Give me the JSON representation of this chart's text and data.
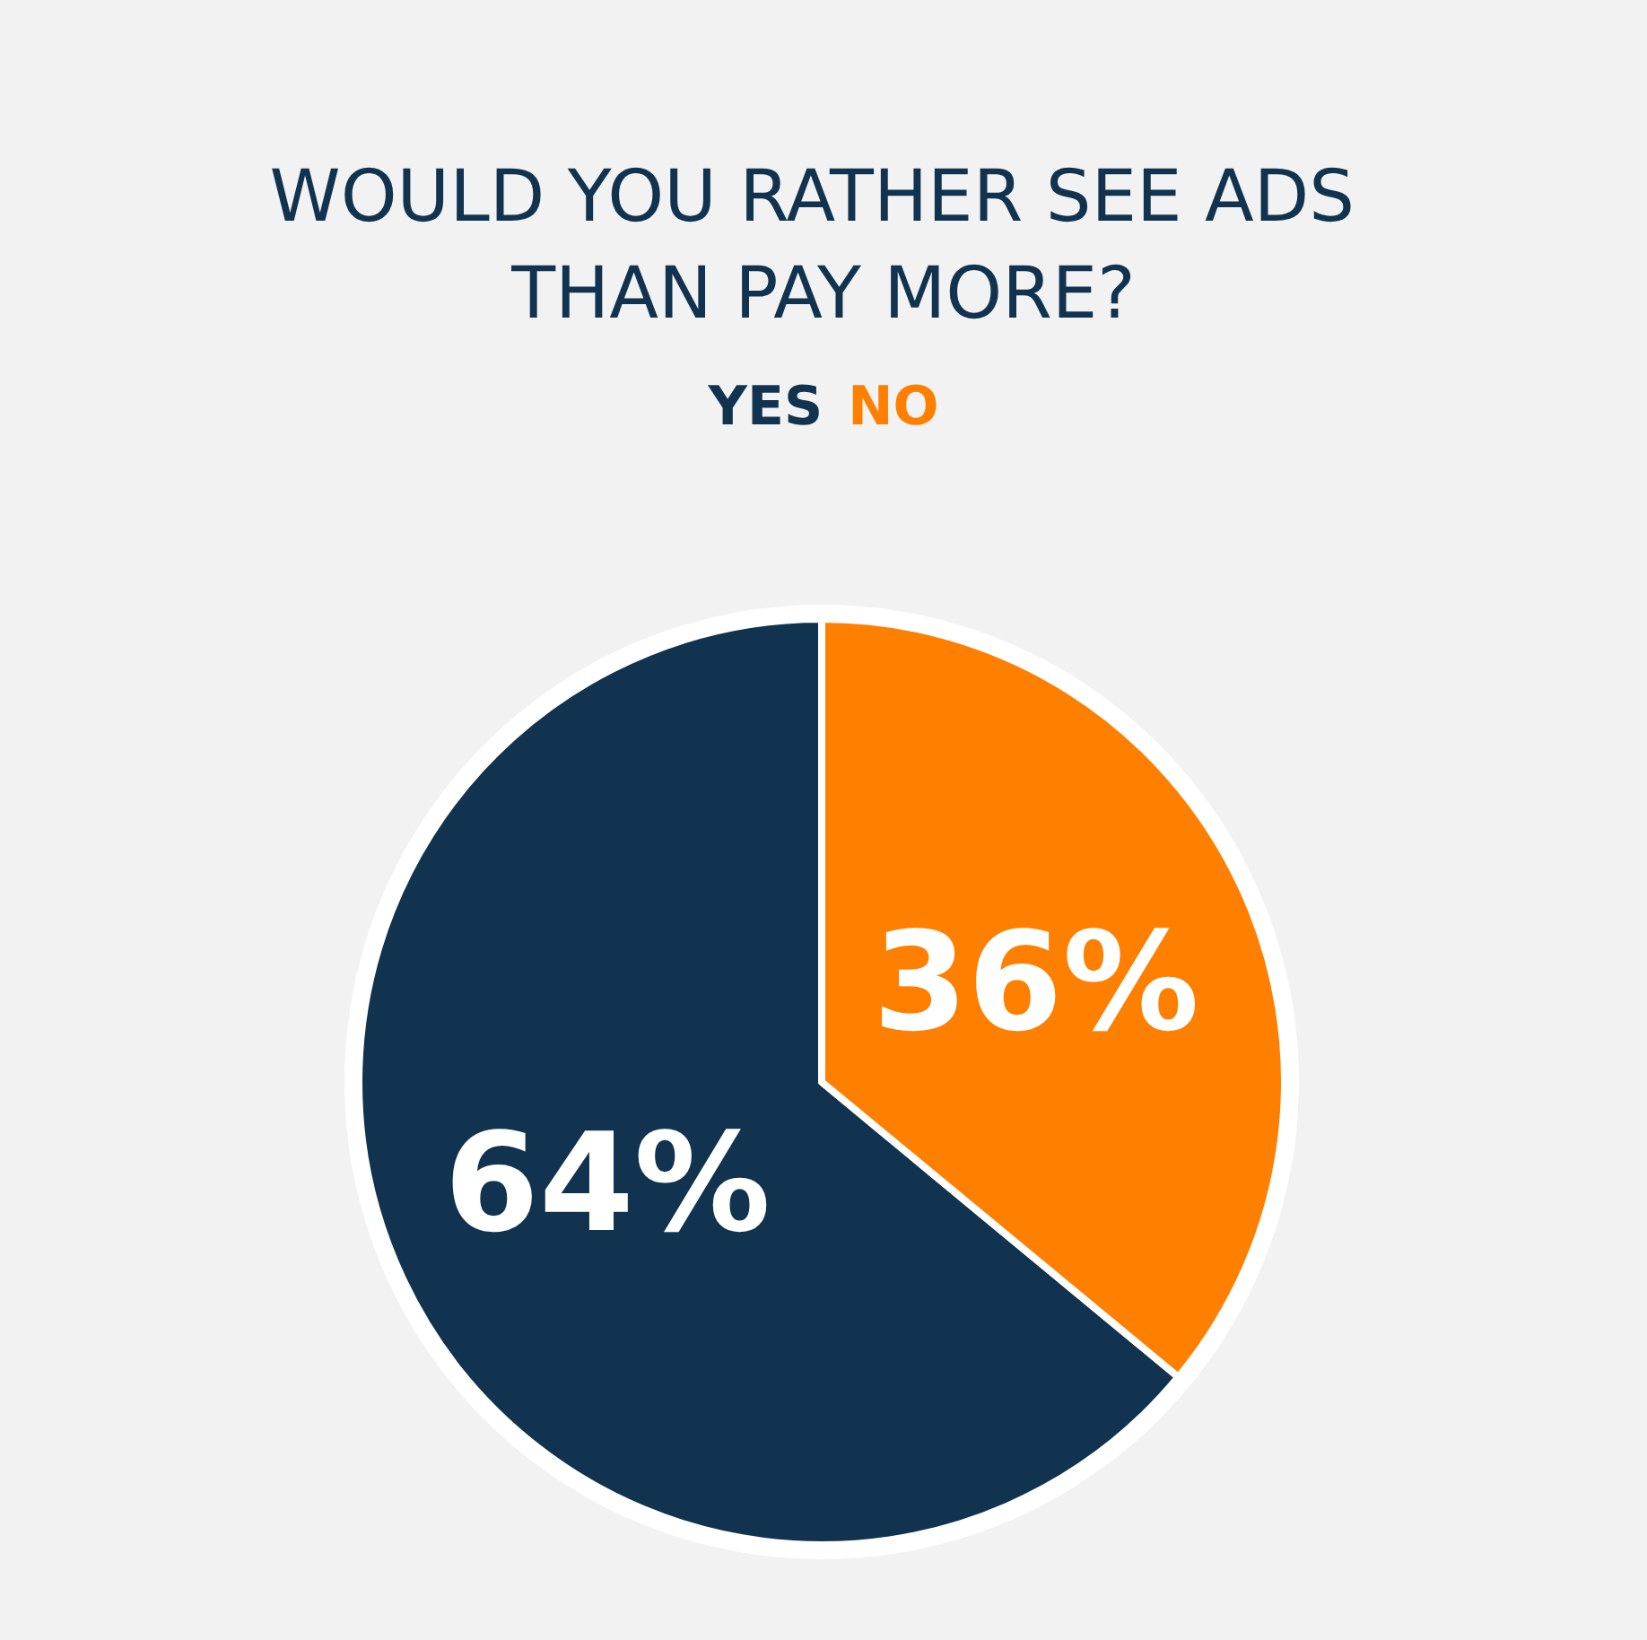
{
  "chart_data": {
    "type": "pie",
    "title": "WOULD YOU RATHER SEE ADS THAN PAY MORE?",
    "categories": [
      "YES",
      "NO"
    ],
    "values": [
      64,
      36
    ],
    "colors": [
      "#11334f",
      "#ff7f00"
    ],
    "value_labels": [
      "64%",
      "36%"
    ]
  }
}
